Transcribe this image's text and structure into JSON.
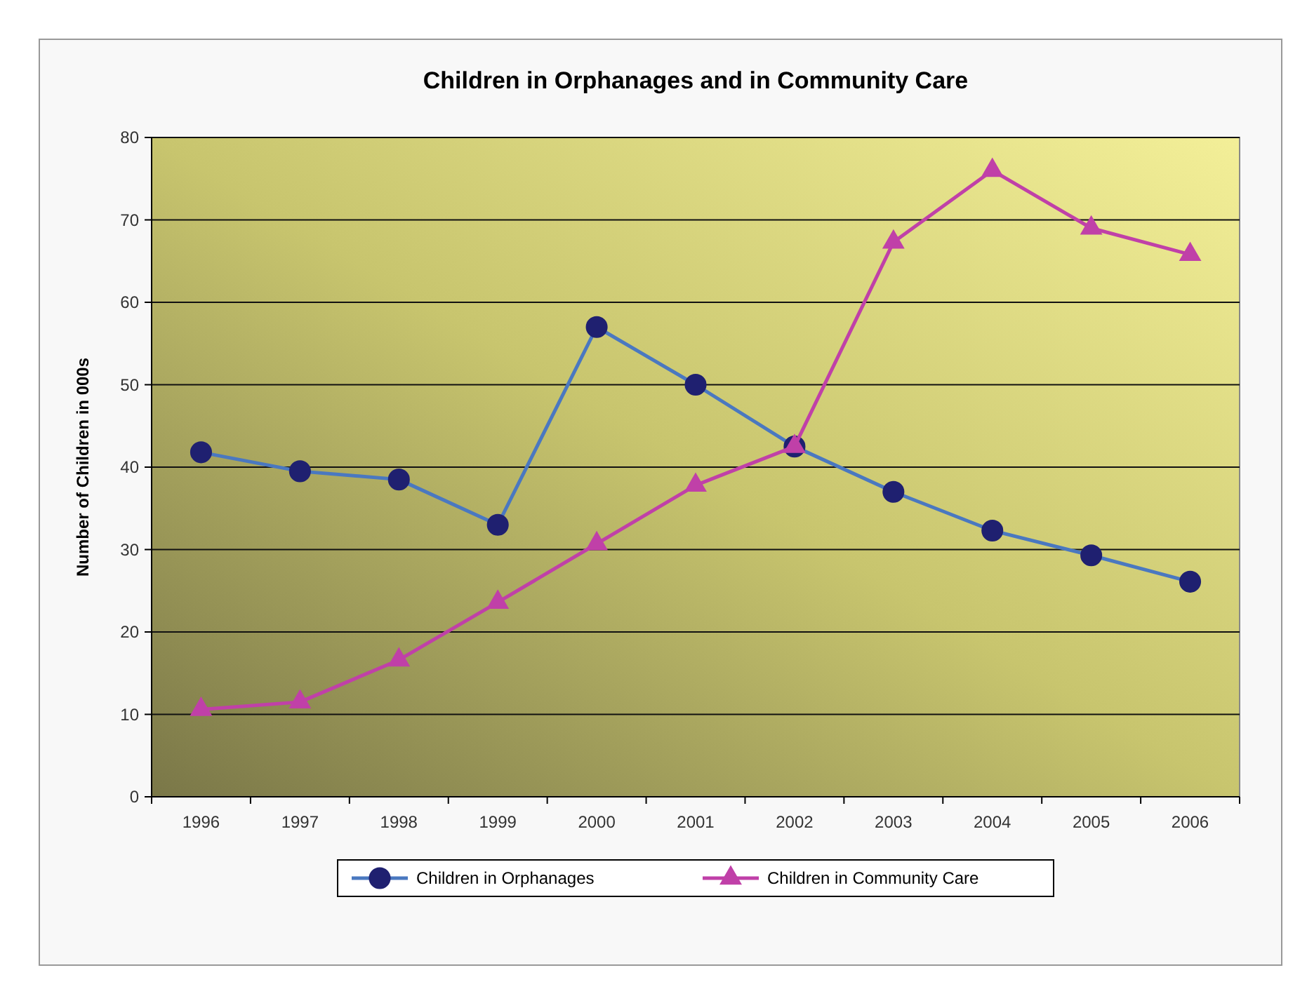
{
  "chart_data": {
    "type": "line",
    "title": "Children in Orphanages and in Community Care",
    "ylabel": "Number of Children in 000s",
    "categories": [
      "1996",
      "1997",
      "1998",
      "1999",
      "2000",
      "2001",
      "2002",
      "2003",
      "2004",
      "2005",
      "2006"
    ],
    "ylim": [
      0,
      80
    ],
    "yticks": [
      0,
      10,
      20,
      30,
      40,
      50,
      60,
      70,
      80
    ],
    "grid": "y",
    "legend": "bottom",
    "line_style": "solid",
    "series": [
      {
        "name": "Children in Orphanages",
        "color": "#4a78c0",
        "marker": "circle",
        "values": [
          41.8,
          39.5,
          38.5,
          33,
          57,
          50,
          42.5,
          37,
          32.3,
          29.3,
          26.1
        ]
      },
      {
        "name": "Children in Community Care",
        "color": "#c040a8",
        "marker": "triangle",
        "values": [
          10.6,
          11.5,
          16.6,
          23.6,
          30.7,
          37.8,
          42.5,
          67.3,
          76,
          69,
          65.8
        ]
      }
    ]
  }
}
